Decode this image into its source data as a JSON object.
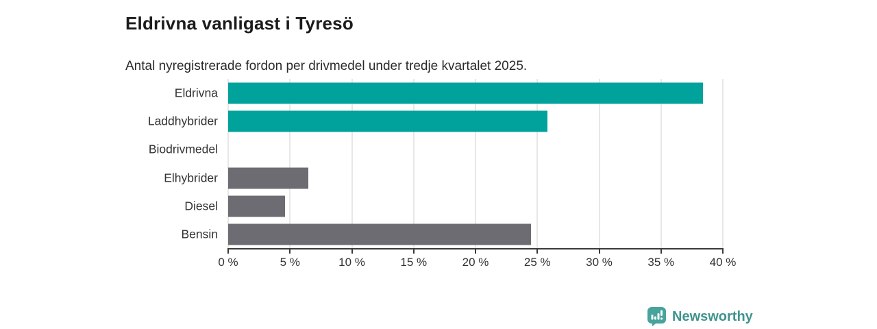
{
  "header": {
    "title": "Eldrivna vanligast i Tyresö",
    "subtitle": "Antal nyregistrerade fordon per drivmedel under tredje kvartalet 2025."
  },
  "chart_data": {
    "type": "bar",
    "orientation": "horizontal",
    "title": "Eldrivna vanligast i Tyresö",
    "subtitle": "Antal nyregistrerade fordon per drivmedel under tredje kvartalet 2025.",
    "categories": [
      "Eldrivna",
      "Laddhybrider",
      "Biodrivmedel",
      "Elhybrider",
      "Diesel",
      "Bensin"
    ],
    "values": [
      38.4,
      25.8,
      0,
      6.5,
      4.6,
      24.5
    ],
    "unit": "%",
    "xlabel": "",
    "ylabel": "",
    "xlim": [
      0,
      40
    ],
    "x_ticks": [
      0,
      5,
      10,
      15,
      20,
      25,
      30,
      35,
      40
    ],
    "x_tick_labels": [
      "0 %",
      "5 %",
      "10 %",
      "15 %",
      "20 %",
      "25 %",
      "30 %",
      "35 %",
      "40 %"
    ],
    "grid": true,
    "legend": "none",
    "bar_colors": [
      "#00a29b",
      "#00a29b",
      "#6c6c72",
      "#6c6c72",
      "#6c6c72",
      "#6c6c72"
    ]
  },
  "colors": {
    "accent_teal": "#00a29b",
    "bar_grey": "#6c6c72",
    "axis": "#3a3a3a",
    "gridline": "#e7e7e7",
    "text": "#333333",
    "logo_teal": "#3e948d",
    "logo_icon_fill": "#47a39b"
  },
  "footer": {
    "brand": "Newsworthy",
    "logo_icon": "bar-chart-speech-bubble-icon"
  }
}
